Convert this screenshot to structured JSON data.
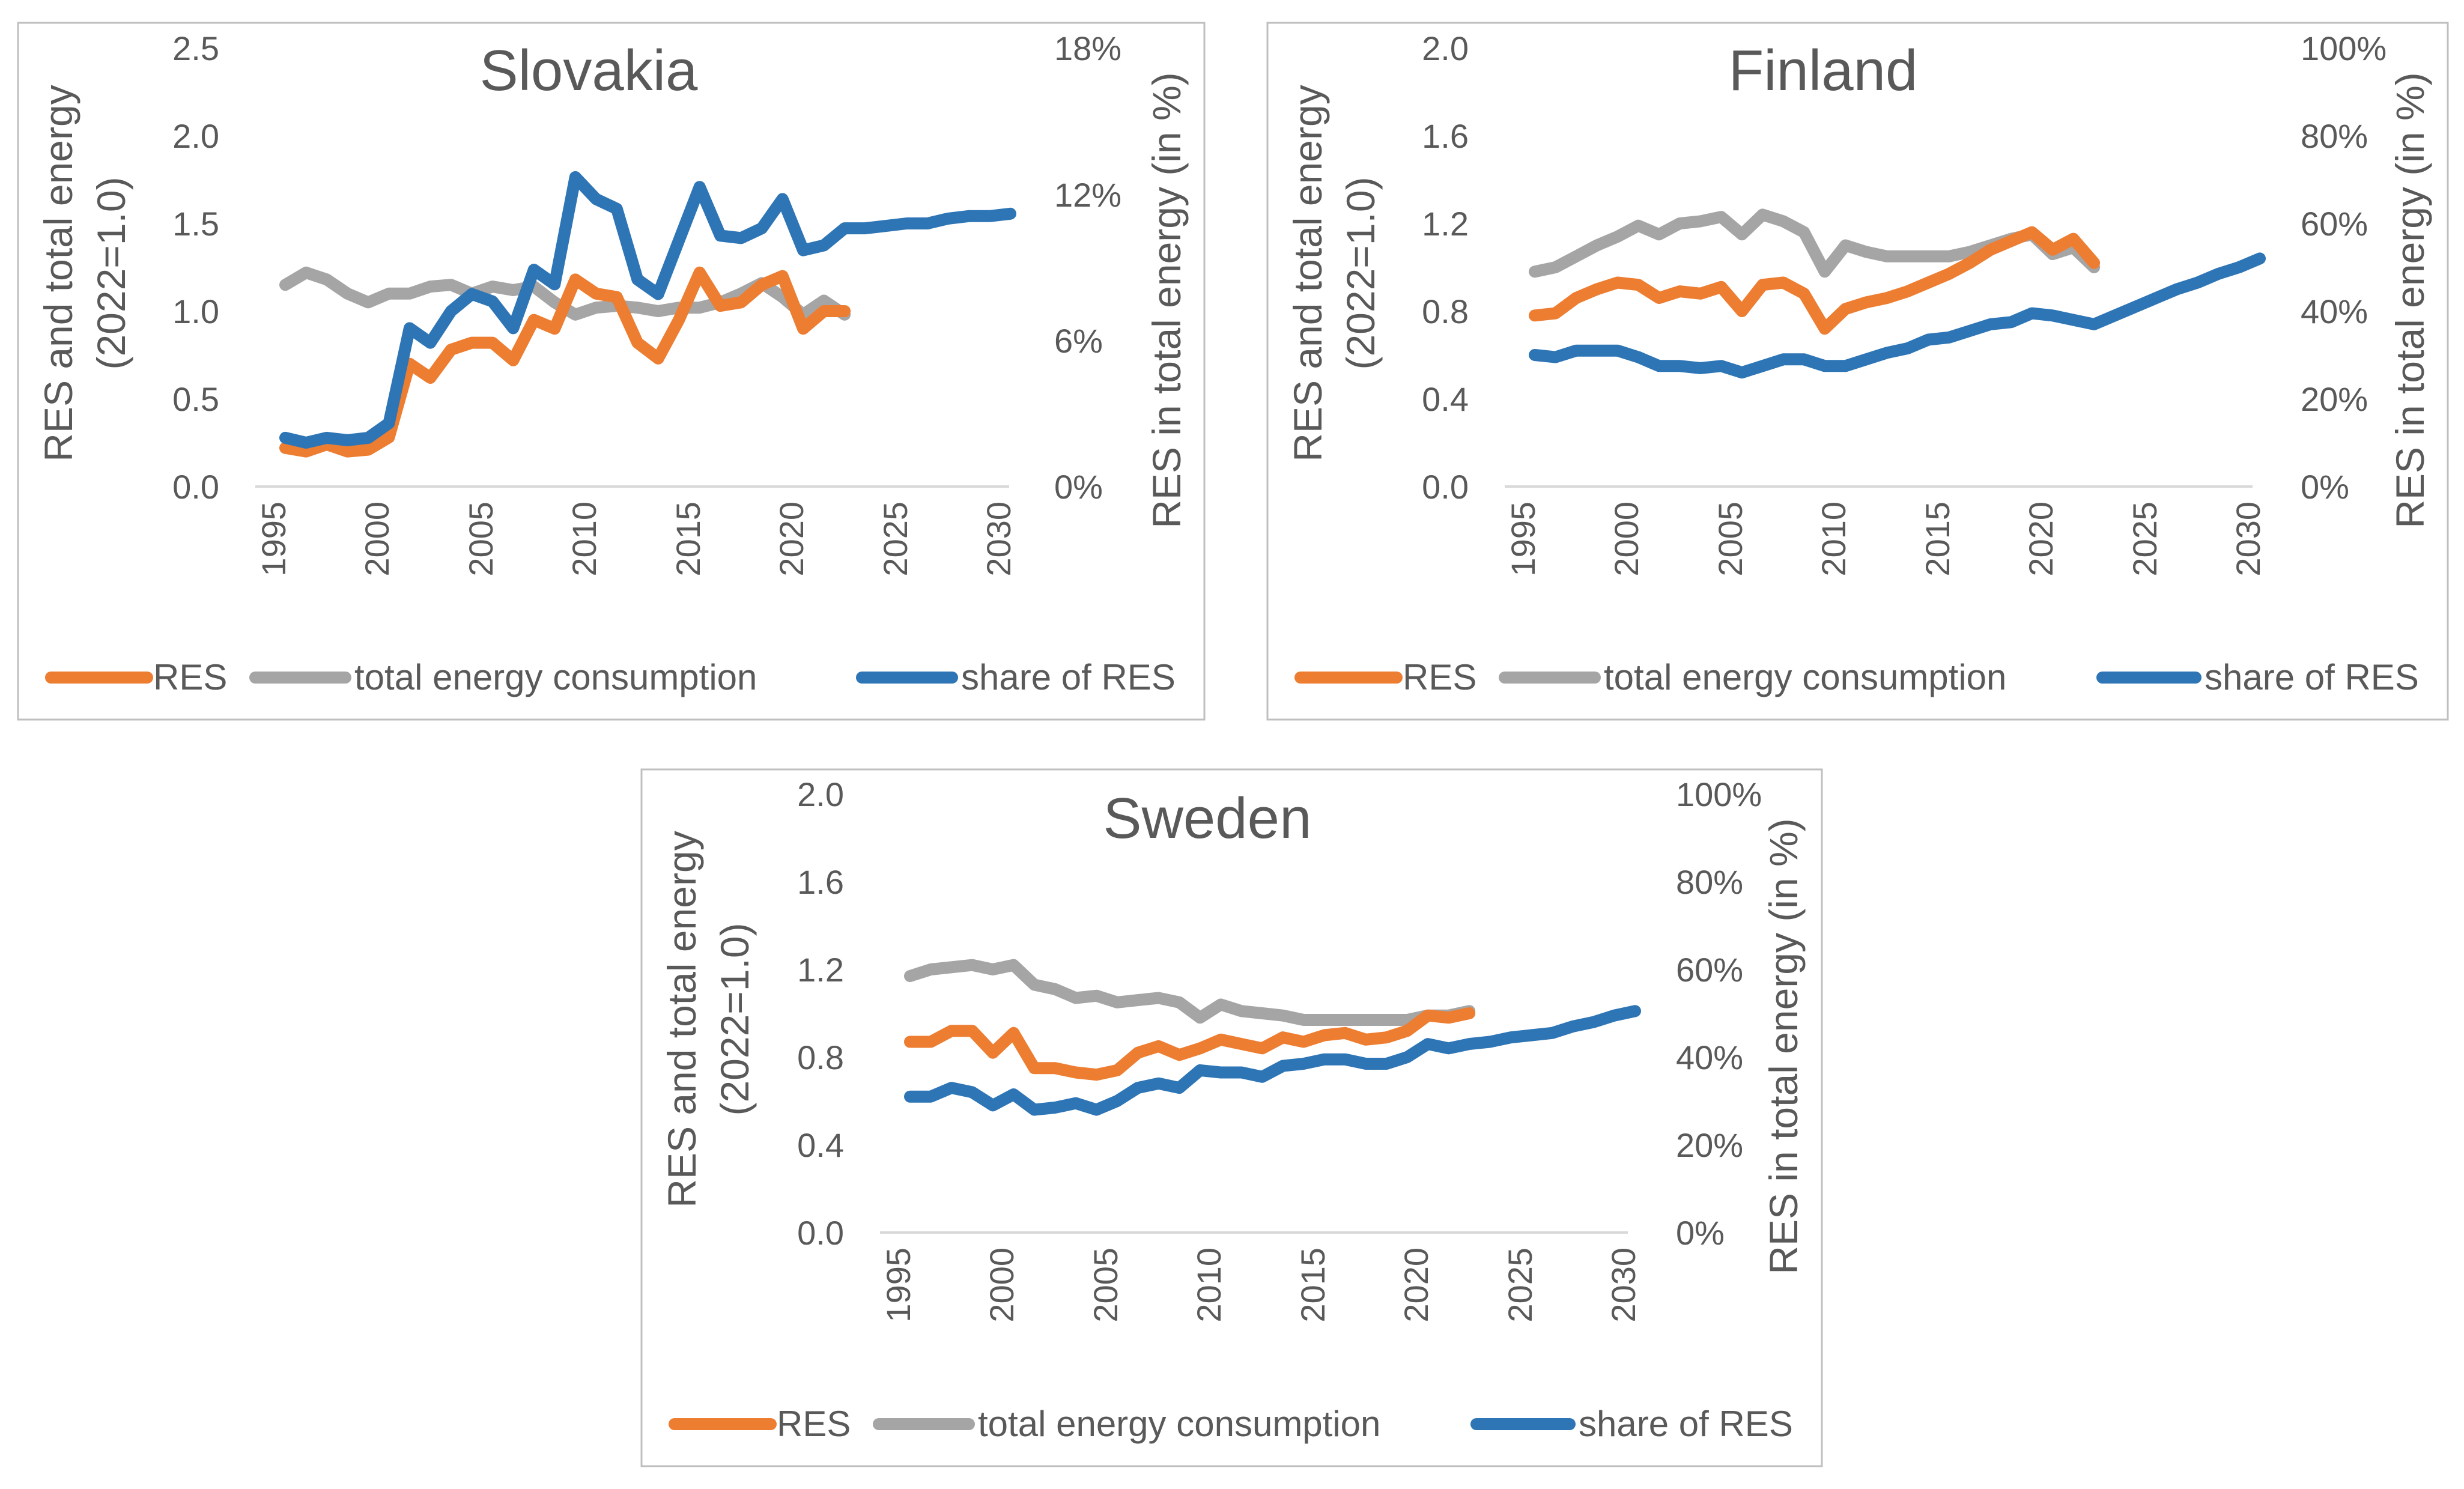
{
  "colors": {
    "res": "#ED7D31",
    "total": "#A5A5A5",
    "share": "#2E75B6",
    "text": "#595959",
    "gridline": "#D9D9D9",
    "frame": "#BFBFBF"
  },
  "chart_data": [
    {
      "type": "line",
      "title": "Slovakia",
      "ylabel_left": [
        "RES and total energy",
        "(2022=1.0)"
      ],
      "ylabel_right": "RES in total energy (in %)",
      "x_ticks": [
        "1995",
        "2000",
        "2005",
        "2010",
        "2015",
        "2020",
        "2025",
        "2030"
      ],
      "left_axis": {
        "ylim": [
          0,
          2.5
        ],
        "ticks": [
          "0.0",
          "0.5",
          "1.0",
          "1.5",
          "2.0",
          "2.5"
        ]
      },
      "right_axis": {
        "ylim": [
          0,
          18
        ],
        "ticks": [
          "0%",
          "6%",
          "12%",
          "18%"
        ]
      },
      "legend": [
        "RES",
        "total energy consumption",
        "share of RES"
      ],
      "series": [
        {
          "name": "RES",
          "axis": "left",
          "color": "#ED7D31",
          "x": [
            1995,
            1996,
            1997,
            1998,
            1999,
            2000,
            2001,
            2002,
            2003,
            2004,
            2005,
            2006,
            2007,
            2008,
            2009,
            2010,
            2011,
            2012,
            2013,
            2014,
            2015,
            2016,
            2017,
            2018,
            2019,
            2020,
            2021,
            2022
          ],
          "values": [
            0.22,
            0.2,
            0.24,
            0.2,
            0.21,
            0.28,
            0.7,
            0.62,
            0.78,
            0.82,
            0.82,
            0.72,
            0.95,
            0.9,
            1.18,
            1.1,
            1.08,
            0.82,
            0.73,
            0.95,
            1.22,
            1.03,
            1.05,
            1.15,
            1.2,
            0.9,
            1.0,
            1.0
          ]
        },
        {
          "name": "total energy consumption",
          "axis": "left",
          "color": "#A5A5A5",
          "x": [
            1995,
            1996,
            1997,
            1998,
            1999,
            2000,
            2001,
            2002,
            2003,
            2004,
            2005,
            2006,
            2007,
            2008,
            2009,
            2010,
            2011,
            2012,
            2013,
            2014,
            2015,
            2016,
            2017,
            2018,
            2019,
            2020,
            2021,
            2022
          ],
          "values": [
            1.15,
            1.22,
            1.18,
            1.1,
            1.05,
            1.1,
            1.1,
            1.14,
            1.15,
            1.1,
            1.14,
            1.12,
            1.14,
            1.05,
            0.98,
            1.02,
            1.03,
            1.02,
            1.0,
            1.02,
            1.02,
            1.05,
            1.1,
            1.16,
            1.08,
            0.98,
            1.06,
            0.98
          ]
        },
        {
          "name": "share of RES",
          "axis": "right",
          "color": "#2E75B6",
          "x": [
            1995,
            1996,
            1997,
            1998,
            1999,
            2000,
            2001,
            2002,
            2003,
            2004,
            2005,
            2006,
            2007,
            2008,
            2009,
            2010,
            2011,
            2012,
            2013,
            2014,
            2015,
            2016,
            2017,
            2018,
            2019,
            2020,
            2021,
            2022,
            2023,
            2024,
            2025,
            2026,
            2027,
            2028,
            2029,
            2030
          ],
          "values": [
            2.0,
            1.8,
            2.0,
            1.9,
            2.0,
            2.6,
            6.5,
            5.9,
            7.2,
            7.9,
            7.6,
            6.5,
            8.9,
            8.3,
            12.7,
            11.8,
            11.4,
            8.5,
            7.9,
            10.1,
            12.3,
            10.3,
            10.2,
            10.6,
            11.8,
            9.7,
            9.9,
            10.6,
            10.6,
            10.7,
            10.8,
            10.8,
            11.0,
            11.1,
            11.1,
            11.2
          ]
        }
      ]
    },
    {
      "type": "line",
      "title": "Finland",
      "ylabel_left": [
        "RES and total energy",
        "(2022=1.0)"
      ],
      "ylabel_right": "RES in total energy (in %)",
      "x_ticks": [
        "1995",
        "2000",
        "2005",
        "2010",
        "2015",
        "2020",
        "2025",
        "2030"
      ],
      "left_axis": {
        "ylim": [
          0,
          2.0
        ],
        "ticks": [
          "0.0",
          "0.4",
          "0.8",
          "1.2",
          "1.6",
          "2.0"
        ]
      },
      "right_axis": {
        "ylim": [
          0,
          100
        ],
        "ticks": [
          "0%",
          "20%",
          "40%",
          "60%",
          "80%",
          "100%"
        ]
      },
      "legend": [
        "RES",
        "total energy consumption",
        "share of RES"
      ],
      "series": [
        {
          "name": "RES",
          "axis": "left",
          "color": "#ED7D31",
          "x": [
            1995,
            1996,
            1997,
            1998,
            1999,
            2000,
            2001,
            2002,
            2003,
            2004,
            2005,
            2006,
            2007,
            2008,
            2009,
            2010,
            2011,
            2012,
            2013,
            2014,
            2015,
            2016,
            2017,
            2018,
            2019,
            2020,
            2021,
            2022
          ],
          "values": [
            0.78,
            0.79,
            0.86,
            0.9,
            0.93,
            0.92,
            0.86,
            0.89,
            0.88,
            0.91,
            0.8,
            0.92,
            0.93,
            0.88,
            0.72,
            0.81,
            0.84,
            0.86,
            0.89,
            0.93,
            0.97,
            1.02,
            1.08,
            1.12,
            1.16,
            1.08,
            1.13,
            1.02
          ]
        },
        {
          "name": "total energy consumption",
          "axis": "left",
          "color": "#A5A5A5",
          "x": [
            1995,
            1996,
            1997,
            1998,
            1999,
            2000,
            2001,
            2002,
            2003,
            2004,
            2005,
            2006,
            2007,
            2008,
            2009,
            2010,
            2011,
            2012,
            2013,
            2014,
            2015,
            2016,
            2017,
            2018,
            2019,
            2020,
            2021,
            2022
          ],
          "values": [
            0.98,
            1.0,
            1.05,
            1.1,
            1.14,
            1.19,
            1.15,
            1.2,
            1.21,
            1.23,
            1.15,
            1.24,
            1.21,
            1.16,
            0.98,
            1.1,
            1.07,
            1.05,
            1.05,
            1.05,
            1.05,
            1.07,
            1.1,
            1.13,
            1.15,
            1.06,
            1.09,
            1.0
          ]
        },
        {
          "name": "share of RES",
          "axis": "right",
          "color": "#2E75B6",
          "x": [
            1995,
            1996,
            1997,
            1998,
            1999,
            2000,
            2001,
            2002,
            2003,
            2004,
            2005,
            2006,
            2007,
            2008,
            2009,
            2010,
            2011,
            2012,
            2013,
            2014,
            2015,
            2016,
            2017,
            2018,
            2019,
            2020,
            2021,
            2022,
            2023,
            2024,
            2025,
            2026,
            2027,
            2028,
            2029,
            2030
          ],
          "values": [
            30.0,
            29.5,
            31.0,
            31.0,
            31.0,
            29.5,
            27.5,
            27.5,
            27.0,
            27.5,
            26.0,
            27.5,
            29.0,
            29.0,
            27.5,
            27.5,
            29.0,
            30.5,
            31.5,
            33.5,
            34.0,
            35.5,
            37.0,
            37.5,
            39.5,
            39.0,
            38.0,
            37.0,
            39.0,
            41.0,
            43.0,
            45.0,
            46.5,
            48.5,
            50.0,
            52.0
          ]
        }
      ]
    },
    {
      "type": "line",
      "title": "Sweden",
      "ylabel_left": [
        "RES and total energy",
        "(2022=1.0)"
      ],
      "ylabel_right": "RES in total energy (in %)",
      "x_ticks": [
        "1995",
        "2000",
        "2005",
        "2010",
        "2015",
        "2020",
        "2025",
        "2030"
      ],
      "left_axis": {
        "ylim": [
          0,
          2.0
        ],
        "ticks": [
          "0.0",
          "0.4",
          "0.8",
          "1.2",
          "1.6",
          "2.0"
        ]
      },
      "right_axis": {
        "ylim": [
          0,
          100
        ],
        "ticks": [
          "0%",
          "20%",
          "40%",
          "60%",
          "80%",
          "100%"
        ]
      },
      "legend": [
        "RES",
        "total energy consumption",
        "share of RES"
      ],
      "series": [
        {
          "name": "RES",
          "axis": "left",
          "color": "#ED7D31",
          "x": [
            1995,
            1996,
            1997,
            1998,
            1999,
            2000,
            2001,
            2002,
            2003,
            2004,
            2005,
            2006,
            2007,
            2008,
            2009,
            2010,
            2011,
            2012,
            2013,
            2014,
            2015,
            2016,
            2017,
            2018,
            2019,
            2020,
            2021,
            2022
          ],
          "values": [
            0.87,
            0.87,
            0.92,
            0.92,
            0.82,
            0.91,
            0.75,
            0.75,
            0.73,
            0.72,
            0.74,
            0.82,
            0.85,
            0.81,
            0.84,
            0.88,
            0.86,
            0.84,
            0.89,
            0.87,
            0.9,
            0.91,
            0.88,
            0.89,
            0.92,
            0.99,
            0.98,
            1.0
          ]
        },
        {
          "name": "total energy consumption",
          "axis": "left",
          "color": "#A5A5A5",
          "x": [
            1995,
            1996,
            1997,
            1998,
            1999,
            2000,
            2001,
            2002,
            2003,
            2004,
            2005,
            2006,
            2007,
            2008,
            2009,
            2010,
            2011,
            2012,
            2013,
            2014,
            2015,
            2016,
            2017,
            2018,
            2019,
            2020,
            2021,
            2022
          ],
          "values": [
            1.17,
            1.2,
            1.21,
            1.22,
            1.2,
            1.22,
            1.13,
            1.11,
            1.07,
            1.08,
            1.05,
            1.06,
            1.07,
            1.05,
            0.98,
            1.04,
            1.01,
            1.0,
            0.99,
            0.97,
            0.97,
            0.97,
            0.97,
            0.97,
            0.97,
            0.99,
            0.99,
            1.01
          ]
        },
        {
          "name": "share of RES",
          "axis": "right",
          "color": "#2E75B6",
          "x": [
            1995,
            1996,
            1997,
            1998,
            1999,
            2000,
            2001,
            2002,
            2003,
            2004,
            2005,
            2006,
            2007,
            2008,
            2009,
            2010,
            2011,
            2012,
            2013,
            2014,
            2015,
            2016,
            2017,
            2018,
            2019,
            2020,
            2021,
            2022,
            2023,
            2024,
            2025,
            2026,
            2027,
            2028,
            2029,
            2030
          ],
          "values": [
            31.0,
            31.0,
            33.0,
            32.0,
            29.0,
            31.5,
            28.0,
            28.5,
            29.5,
            28.0,
            30.0,
            33.0,
            34.0,
            33.0,
            37.0,
            36.5,
            36.5,
            35.5,
            38.0,
            38.5,
            39.5,
            39.5,
            38.5,
            38.5,
            40.0,
            43.0,
            42.0,
            43.0,
            43.5,
            44.5,
            45.0,
            45.5,
            47.0,
            48.0,
            49.5,
            50.5
          ]
        }
      ]
    }
  ]
}
